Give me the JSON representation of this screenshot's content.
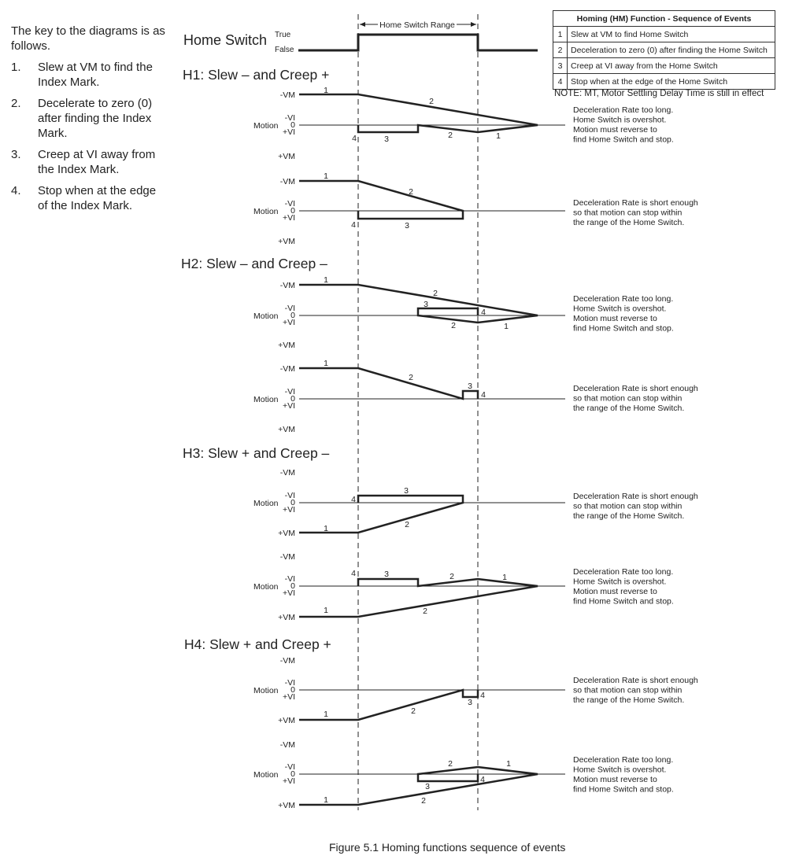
{
  "key": {
    "intro": "The key to the diagrams is as follows.",
    "items": [
      {
        "num": "1.",
        "text": "Slew at VM to find the Index Mark."
      },
      {
        "num": "2.",
        "text": "Decelerate to zero (0) after finding the Index Mark."
      },
      {
        "num": "3.",
        "text": "Creep at VI away from the Index Mark."
      },
      {
        "num": "4.",
        "text": "Stop when at the edge of the Index Mark."
      }
    ]
  },
  "table": {
    "title": "Homing (HM) Function - Sequence of Events",
    "rows": [
      {
        "num": "1",
        "text": "Slew at VM to find Home Switch"
      },
      {
        "num": "2",
        "text": "Deceleration to zero (0) after finding the Home Switch"
      },
      {
        "num": "3",
        "text": "Creep at VI away from the Home Switch"
      },
      {
        "num": "4",
        "text": "Stop when at the edge of the Home Switch"
      }
    ]
  },
  "note": "NOTE: MT, Motor Settling Delay Time is still in effect",
  "caption": "Figure 5.1  Homing functions sequence of events",
  "home_switch": {
    "label": "Home Switch",
    "true_label": "True",
    "false_label": "False",
    "range_label": "Home Switch Range"
  },
  "labels": {
    "neg_vm": "-VM",
    "pos_vm": "+VM",
    "neg_vi": "-VI",
    "zero": "0",
    "pos_vi": "+VI",
    "motion": "Motion"
  },
  "descriptions": {
    "overshoot": [
      "Deceleration Rate too long.",
      "Home Switch is overshot.",
      "Motion must reverse to",
      "find Home Switch and stop."
    ],
    "within": [
      "Deceleration Rate is short enough",
      "so that motion can stop within",
      "the range of the Home Switch."
    ]
  },
  "sections": [
    {
      "title": "H1: Slew – and Creep +"
    },
    {
      "title": "H2: Slew – and Creep –"
    },
    {
      "title": "H3: Slew + and Creep –"
    },
    {
      "title": "H4: Slew + and Creep +"
    }
  ],
  "step_numbers": [
    "1",
    "2",
    "3",
    "4"
  ]
}
